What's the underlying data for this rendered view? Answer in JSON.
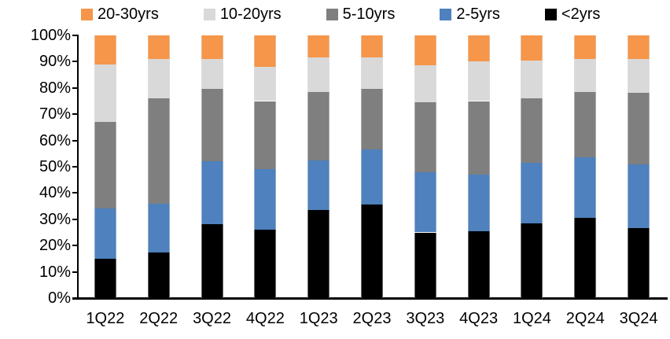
{
  "legend": {
    "items": [
      {
        "label": "20-30yrs",
        "color": "#F5964A"
      },
      {
        "label": "10-20yrs",
        "color": "#D9D9D9"
      },
      {
        "label": "5-10yrs",
        "color": "#7F7F7F"
      },
      {
        "label": "2-5yrs",
        "color": "#4E81BD"
      },
      {
        "label": "<2yrs",
        "color": "#000000"
      }
    ]
  },
  "chart_data": {
    "type": "bar",
    "stacked": true,
    "percent_stacked": true,
    "title": "",
    "xlabel": "",
    "ylabel": "",
    "unit": "%",
    "ylim": [
      0,
      100
    ],
    "grid": false,
    "legend_position": "top",
    "yticks": [
      "0%",
      "10%",
      "20%",
      "30%",
      "40%",
      "50%",
      "60%",
      "70%",
      "80%",
      "90%",
      "100%"
    ],
    "categories": [
      "1Q22",
      "2Q22",
      "3Q22",
      "4Q22",
      "1Q23",
      "2Q23",
      "3Q23",
      "4Q23",
      "1Q24",
      "2Q24",
      "3Q24"
    ],
    "series": [
      {
        "name": "<2yrs",
        "color": "#000000",
        "values": [
          15.0,
          17.5,
          28.0,
          26.0,
          33.5,
          35.5,
          25.0,
          25.5,
          28.5,
          30.5,
          26.5
        ]
      },
      {
        "name": "2-5yrs",
        "color": "#4E81BD",
        "values": [
          19.0,
          18.5,
          24.0,
          23.0,
          19.0,
          21.0,
          23.0,
          21.5,
          23.0,
          23.0,
          24.5
        ]
      },
      {
        "name": "5-10yrs",
        "color": "#7F7F7F",
        "values": [
          33.0,
          40.0,
          27.5,
          26.0,
          26.0,
          23.0,
          26.5,
          28.0,
          24.5,
          25.0,
          27.0
        ]
      },
      {
        "name": "10-20yrs",
        "color": "#D9D9D9",
        "values": [
          22.0,
          15.0,
          11.5,
          13.0,
          13.0,
          12.0,
          14.0,
          15.0,
          14.5,
          12.5,
          13.0
        ]
      },
      {
        "name": "20-30yrs",
        "color": "#F5964A",
        "values": [
          11.0,
          9.0,
          9.0,
          12.0,
          8.5,
          8.5,
          11.5,
          10.0,
          9.5,
          9.0,
          9.0
        ]
      }
    ]
  }
}
